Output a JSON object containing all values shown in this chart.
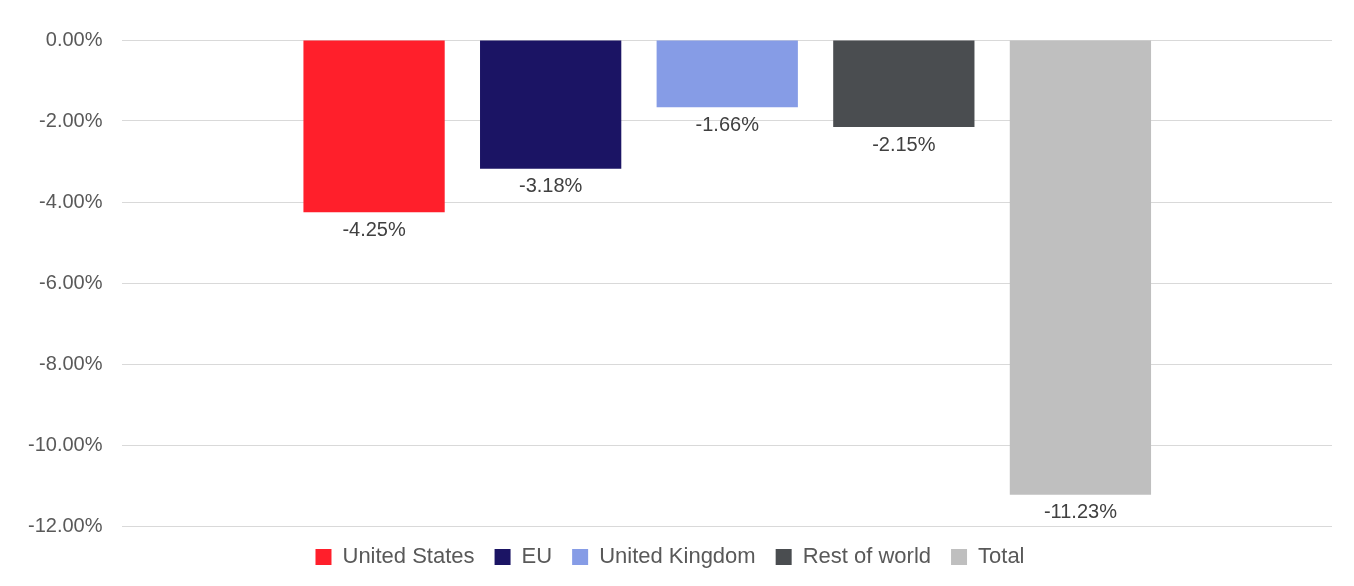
{
  "chart_data": {
    "type": "bar",
    "categories": [
      null
    ],
    "series": [
      {
        "name": "United States",
        "color": "#ff1f2b",
        "values": [
          -4.25
        ],
        "value_labels": [
          "-4.25%"
        ]
      },
      {
        "name": "EU",
        "color": "#1b1464",
        "values": [
          -3.18
        ],
        "value_labels": [
          "-3.18%"
        ]
      },
      {
        "name": "United Kingdom",
        "color": "#869ce6",
        "values": [
          -1.66
        ],
        "value_labels": [
          "-1.66%"
        ]
      },
      {
        "name": "Rest of world",
        "color": "#4a4d50",
        "values": [
          -2.15
        ],
        "value_labels": [
          "-2.15%"
        ]
      },
      {
        "name": "Total",
        "color": "#bfbfbf",
        "values": [
          -11.23
        ],
        "value_labels": [
          "-11.23%"
        ]
      }
    ],
    "ylim": [
      -12,
      0
    ],
    "yticks": [
      {
        "value": 0,
        "label": "0.00%"
      },
      {
        "value": -2,
        "label": "-2.00%"
      },
      {
        "value": -4,
        "label": "-4.00%"
      },
      {
        "value": -6,
        "label": "-6.00%"
      },
      {
        "value": -8,
        "label": "-8.00%"
      },
      {
        "value": -10,
        "label": "-10.00%"
      },
      {
        "value": -12,
        "label": "-12.00%"
      }
    ],
    "grid": "y",
    "legend": "bottom"
  }
}
